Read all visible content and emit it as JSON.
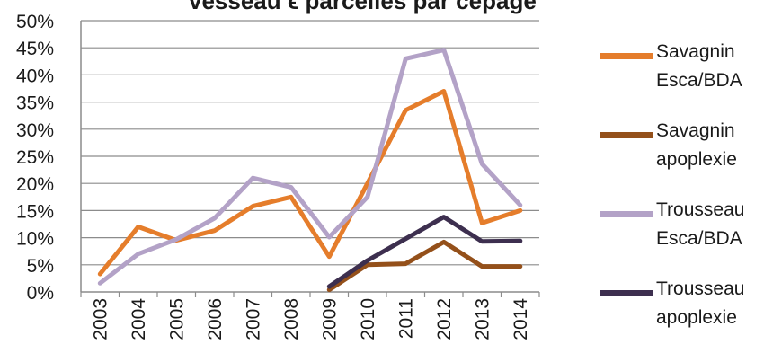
{
  "chart_data": {
    "type": "line",
    "title": "vesseau ϵ parcelles par cépage",
    "x": [
      "2003",
      "2004",
      "2005",
      "2006",
      "2007",
      "2008",
      "2009",
      "2010",
      "2011",
      "2012",
      "2013",
      "2014"
    ],
    "ylim": [
      0,
      50
    ],
    "yticks": [
      "0%",
      "5%",
      "10%",
      "15%",
      "20%",
      "25%",
      "30%",
      "35%",
      "40%",
      "45%",
      "50%"
    ],
    "grid": true,
    "legend_position": "right",
    "series": [
      {
        "name": "Savagnin Esca/BDA",
        "name_lines": [
          "Savagnin",
          "Esca/BDA"
        ],
        "color": "#E57D2B",
        "values": [
          3.3,
          12.0,
          9.5,
          11.3,
          15.8,
          17.5,
          6.5,
          20.0,
          33.5,
          37.0,
          12.7,
          15.0
        ]
      },
      {
        "name": "Savagnin apoplexie",
        "name_lines": [
          "Savagnin",
          "apoplexie"
        ],
        "color": "#94501A",
        "values": [
          null,
          null,
          null,
          null,
          null,
          null,
          0.4,
          5.0,
          5.2,
          9.2,
          4.7,
          4.7
        ]
      },
      {
        "name": "Trousseau Esca/BDA",
        "name_lines": [
          "Trousseau",
          "Esca/BDA"
        ],
        "color": "#B3A2C7",
        "values": [
          1.6,
          7.0,
          9.7,
          13.6,
          21.0,
          19.3,
          10.1,
          17.5,
          43.0,
          44.6,
          23.6,
          16.0
        ]
      },
      {
        "name": "Trousseau apoplexie",
        "name_lines": [
          "Trousseau",
          "apoplexie"
        ],
        "color": "#3D2F4F",
        "values": [
          null,
          null,
          null,
          null,
          null,
          null,
          1.0,
          5.8,
          9.8,
          13.8,
          9.3,
          9.4
        ]
      }
    ]
  }
}
